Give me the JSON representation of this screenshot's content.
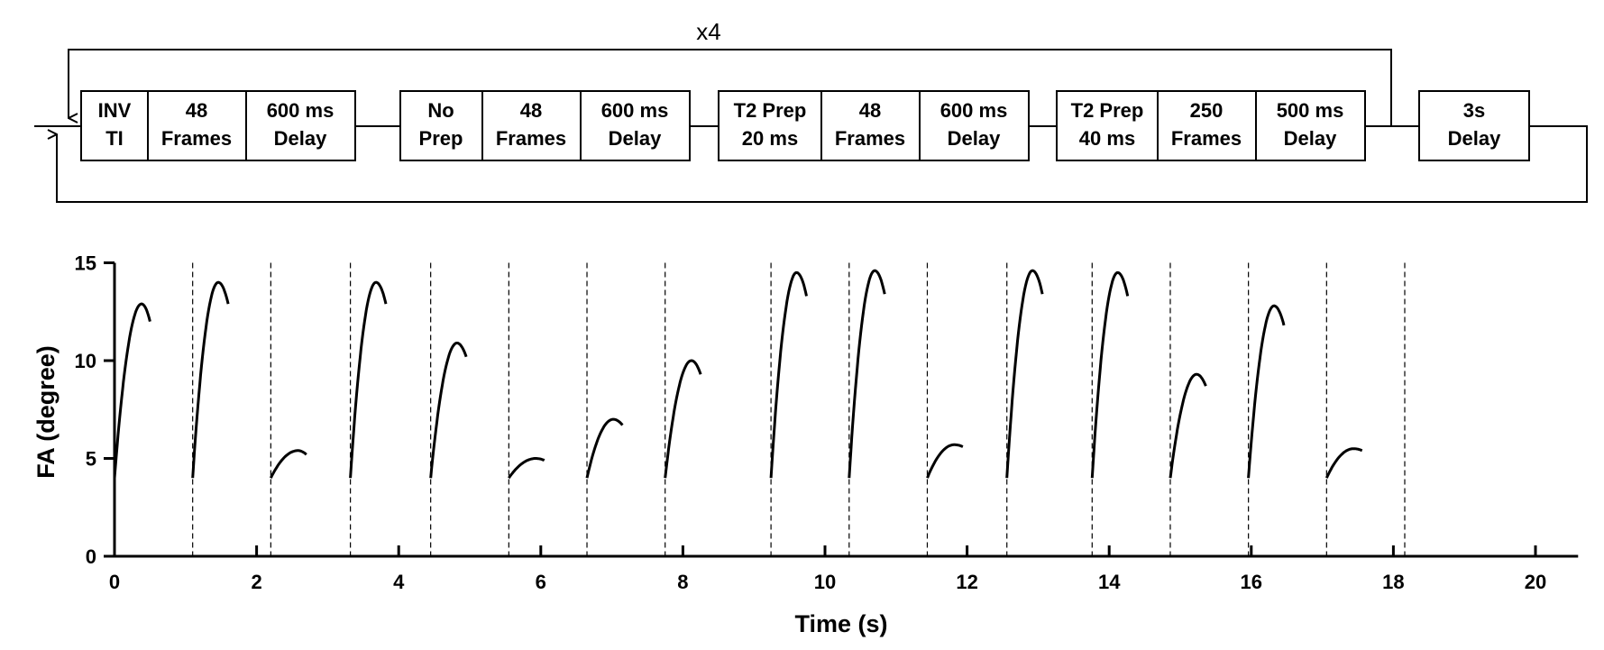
{
  "diagram": {
    "repeat_label": "x4",
    "groups": [
      {
        "blocks": [
          [
            "INV",
            "TI"
          ],
          [
            "48",
            "Frames"
          ],
          [
            "600 ms",
            "Delay"
          ]
        ]
      },
      {
        "blocks": [
          [
            "No",
            "Prep"
          ],
          [
            "48",
            "Frames"
          ],
          [
            "600 ms",
            "Delay"
          ]
        ]
      },
      {
        "blocks": [
          [
            "T2 Prep",
            "20 ms"
          ],
          [
            "48",
            "Frames"
          ],
          [
            "600 ms",
            "Delay"
          ]
        ]
      },
      {
        "blocks": [
          [
            "T2 Prep",
            "40 ms"
          ],
          [
            "250",
            "Frames"
          ],
          [
            "500 ms",
            "Delay"
          ]
        ]
      },
      {
        "blocks": [
          [
            "3s",
            "Delay"
          ]
        ]
      }
    ]
  },
  "chart_data": {
    "type": "line",
    "title": "",
    "xlabel": "Time (s)",
    "ylabel": "FA (degree)",
    "xlim": [
      0,
      20.6
    ],
    "ylim": [
      0,
      15
    ],
    "xticks": [
      0,
      2,
      4,
      6,
      8,
      10,
      12,
      14,
      16,
      18,
      20
    ],
    "yticks": [
      0,
      5,
      10,
      15
    ],
    "dashed_lines_x": [
      1.1,
      2.2,
      3.32,
      4.45,
      5.55,
      6.65,
      7.75,
      9.24,
      10.34,
      11.44,
      12.56,
      13.76,
      14.86,
      15.96,
      17.06,
      18.16
    ],
    "segments": [
      {
        "start": 0.0,
        "end": 0.5,
        "y_start": 4.0,
        "y_peak": 12.9,
        "t_peak": 0.38,
        "y_end": 12.0
      },
      {
        "start": 1.1,
        "end": 1.6,
        "y_start": 4.0,
        "y_peak": 14.0,
        "t_peak": 1.46,
        "y_end": 12.9
      },
      {
        "start": 2.2,
        "end": 2.7,
        "y_start": 4.0,
        "y_peak": 5.4,
        "t_peak": 2.58,
        "y_end": 5.2
      },
      {
        "start": 3.32,
        "end": 3.82,
        "y_start": 4.0,
        "y_peak": 14.0,
        "t_peak": 3.68,
        "y_end": 12.9
      },
      {
        "start": 4.45,
        "end": 4.95,
        "y_start": 4.0,
        "y_peak": 10.9,
        "t_peak": 4.82,
        "y_end": 10.2
      },
      {
        "start": 5.55,
        "end": 6.05,
        "y_start": 4.0,
        "y_peak": 5.0,
        "t_peak": 5.93,
        "y_end": 4.9
      },
      {
        "start": 6.65,
        "end": 7.15,
        "y_start": 4.0,
        "y_peak": 7.0,
        "t_peak": 7.02,
        "y_end": 6.7
      },
      {
        "start": 7.75,
        "end": 8.25,
        "y_start": 4.0,
        "y_peak": 10.0,
        "t_peak": 8.12,
        "y_end": 9.3
      },
      {
        "start": 9.24,
        "end": 9.74,
        "y_start": 4.0,
        "y_peak": 14.5,
        "t_peak": 9.6,
        "y_end": 13.3
      },
      {
        "start": 10.34,
        "end": 10.84,
        "y_start": 4.0,
        "y_peak": 14.6,
        "t_peak": 10.7,
        "y_end": 13.4
      },
      {
        "start": 11.44,
        "end": 11.94,
        "y_start": 4.0,
        "y_peak": 5.7,
        "t_peak": 11.82,
        "y_end": 5.6
      },
      {
        "start": 12.56,
        "end": 13.06,
        "y_start": 4.0,
        "y_peak": 14.6,
        "t_peak": 12.92,
        "y_end": 13.4
      },
      {
        "start": 13.76,
        "end": 14.26,
        "y_start": 4.0,
        "y_peak": 14.5,
        "t_peak": 14.12,
        "y_end": 13.3
      },
      {
        "start": 14.86,
        "end": 15.36,
        "y_start": 4.0,
        "y_peak": 9.3,
        "t_peak": 15.23,
        "y_end": 8.7
      },
      {
        "start": 15.96,
        "end": 16.46,
        "y_start": 4.0,
        "y_peak": 12.8,
        "t_peak": 16.32,
        "y_end": 11.8
      },
      {
        "start": 17.06,
        "end": 17.56,
        "y_start": 4.0,
        "y_peak": 5.5,
        "t_peak": 17.44,
        "y_end": 5.4
      }
    ]
  }
}
